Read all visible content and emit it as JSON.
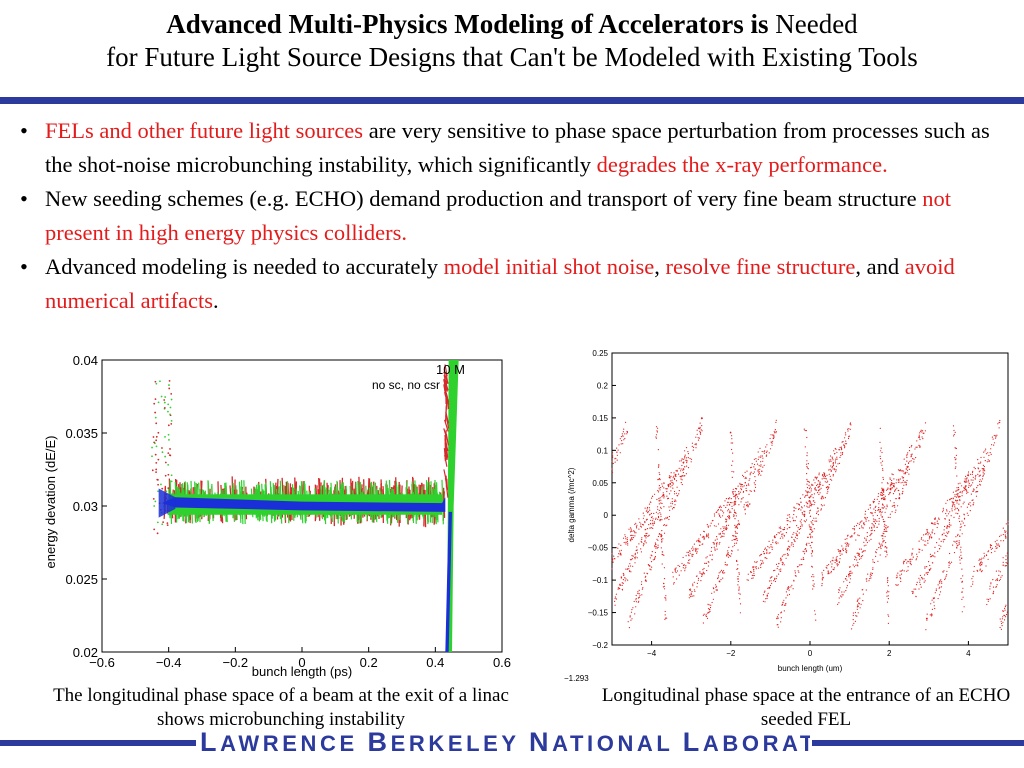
{
  "title": {
    "line1_bold": "Advanced Multi-Physics Modeling of Accelerators is",
    "line1_rest": "Needed",
    "line2": "for Future Light Source Designs that Can't be Modeled with Existing Tools"
  },
  "bullets": {
    "bullet_char": "•",
    "b1": {
      "red1": "FELs and other future light sources",
      "text1": "are very sensitive to phase space perturbation from processes such as the shot-noise microbunching instability, which significantly",
      "red2": "degrades the x-ray performance."
    },
    "b2": {
      "text1": "New seeding schemes (e.g. ECHO) demand production and transport of very fine beam structure",
      "red1": "not present in high energy physics colliders."
    },
    "b3": {
      "text1": "Advanced modeling is needed to accurately",
      "red1": "model initial shot noise",
      "sep1": ",",
      "red2": "resolve fine structure",
      "sep2": ", and",
      "red3": "avoid  numerical artifacts",
      "end": "."
    }
  },
  "figure1": {
    "xlabel": "bunch length (ps)",
    "ylabel": "energy devation (dE/E)",
    "xticks": [
      "−0.6",
      "−0.4",
      "−0.2",
      "0",
      "0.2",
      "0.4",
      "0.6"
    ],
    "yticks": [
      "0.04",
      "0.035",
      "0.03",
      "0.025",
      "0.02"
    ],
    "annotation1": "10 M",
    "annotation2": "no sc, no csr",
    "caption": "The longitudinal phase space of a beam at the exit of a linac shows microbunching instability"
  },
  "figure2": {
    "xlabel": "bunch length (um)",
    "ylabel": "delta gamma (/mc^2)",
    "xticks": [
      "−4",
      "−2",
      "0",
      "2",
      "4"
    ],
    "yticks": [
      "0.25",
      "0.2",
      "0.15",
      "0.1",
      "0.05",
      "0",
      "−0.05",
      "−0.1",
      "−0.15",
      "−0.2"
    ],
    "corner_label": "−1.293",
    "caption": "Longitudinal phase space at the entrance of an ECHO seeded FEL"
  },
  "footer": {
    "L": "L",
    "awrence": "AWRENCE",
    "B": "B",
    "erkeley": "ERKELEY",
    "N": "N",
    "ational": "ATIONAL",
    "L2": "L",
    "aboratory": "ABORATORY"
  },
  "colors": {
    "accent": "#2b3a9c",
    "highlight": "#e31b1b"
  }
}
